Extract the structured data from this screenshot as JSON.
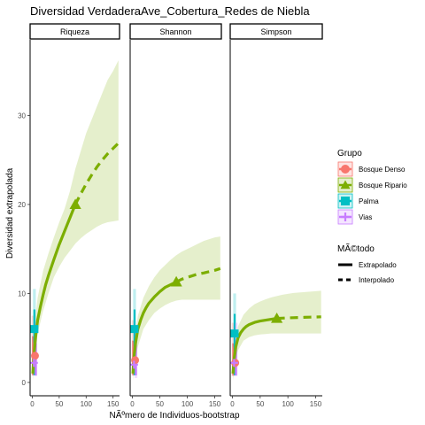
{
  "chart_data": {
    "type": "line",
    "title": "Diversidad VerdaderaAve_Cobertura_Redes de Niebla",
    "xlabel": "NÃºmero de Individuos-bootstrap",
    "ylabel": "Diversidad extrapolada",
    "xlim": [
      -4,
      162
    ],
    "ylim": [
      -1.5,
      38.5
    ],
    "x_ticks": [
      0,
      50,
      100,
      150
    ],
    "y_ticks": [
      0,
      10,
      20,
      30
    ],
    "grid": false,
    "legend_position": "right",
    "legend": {
      "color_title": "Grupo",
      "linetype_title": "MÃ©todo",
      "linetype_entries": [
        "Extrapolado",
        "Interpolado"
      ]
    },
    "colors": {
      "Bosque Denso": "#F8766D",
      "Bosque Ripario": "#7CAE00",
      "Palma": "#00BFC4",
      "Vias": "#C77CFF"
    },
    "groups": [
      {
        "name": "Bosque Denso",
        "color": "#F8766D",
        "shape": "circle"
      },
      {
        "name": "Bosque Ripario",
        "color": "#7CAE00",
        "shape": "triangle"
      },
      {
        "name": "Palma",
        "color": "#00BFC4",
        "shape": "square"
      },
      {
        "name": "Vias",
        "color": "#C77CFF",
        "shape": "cross"
      }
    ],
    "panels": [
      {
        "label": "Riqueza",
        "observed": {
          "x": 80,
          "y": 20
        },
        "curve": {
          "x": [
            1,
            3,
            6,
            10,
            15,
            20,
            25,
            30,
            40,
            50,
            60,
            70,
            80,
            90,
            100,
            110,
            120,
            130,
            140,
            150,
            160
          ],
          "y": [
            1,
            3,
            5,
            7,
            8.5,
            9.8,
            11,
            12,
            13.8,
            15.5,
            17,
            18.5,
            20,
            21.2,
            22.3,
            23.3,
            24.2,
            25,
            25.7,
            26.3,
            26.9
          ]
        },
        "ribbon": {
          "x": [
            1,
            5,
            10,
            20,
            30,
            40,
            50,
            60,
            70,
            80,
            90,
            100,
            110,
            120,
            130,
            140,
            150,
            160
          ],
          "lower": [
            0.2,
            3,
            5.5,
            8,
            10,
            11.8,
            13,
            14,
            14.8,
            15.6,
            16.2,
            16.7,
            17.1,
            17.5,
            17.8,
            18.0,
            18.1,
            18.2
          ],
          "upper": [
            3,
            7,
            9.5,
            12.5,
            14.5,
            16.3,
            18,
            19.5,
            21.5,
            24,
            26,
            28,
            29.5,
            31,
            32.5,
            34,
            35,
            36.2
          ]
        },
        "small_groups": {
          "Bosque Denso": {
            "x": 5,
            "y": 3
          },
          "Palma": {
            "x": 4,
            "y": 6
          },
          "Vias": {
            "x": 3,
            "y": 2.2
          }
        }
      },
      {
        "label": "Shannon",
        "observed": {
          "x": 80,
          "y": 11.3
        },
        "curve": {
          "x": [
            1,
            3,
            6,
            10,
            15,
            20,
            25,
            30,
            40,
            50,
            60,
            70,
            80,
            90,
            100,
            110,
            120,
            130,
            140,
            150,
            160
          ],
          "y": [
            1,
            2.8,
            4.5,
            6,
            7,
            7.8,
            8.4,
            8.9,
            9.6,
            10.2,
            10.7,
            11.0,
            11.3,
            11.6,
            11.8,
            12.0,
            12.2,
            12.3,
            12.45,
            12.6,
            12.8
          ]
        },
        "ribbon": {
          "x": [
            1,
            5,
            10,
            20,
            30,
            40,
            50,
            60,
            70,
            80,
            90,
            100,
            110,
            120,
            130,
            140,
            150,
            160
          ],
          "lower": [
            0.2,
            2.5,
            4,
            6,
            7,
            7.8,
            8.3,
            8.7,
            9.0,
            9.2,
            9.3,
            9.3,
            9.3,
            9.3,
            9.3,
            9.3,
            9.3,
            9.3
          ],
          "upper": [
            2.5,
            5.5,
            7.5,
            9.5,
            10.8,
            11.8,
            12.6,
            13.2,
            13.8,
            14.3,
            14.7,
            15.0,
            15.3,
            15.6,
            15.9,
            16.1,
            16.3,
            16.4
          ]
        },
        "small_groups": {
          "Bosque Denso": {
            "x": 5,
            "y": 2.5
          },
          "Palma": {
            "x": 4,
            "y": 6
          },
          "Vias": {
            "x": 3,
            "y": 2
          }
        }
      },
      {
        "label": "Simpson",
        "observed": {
          "x": 80,
          "y": 7.2
        },
        "curve": {
          "x": [
            1,
            3,
            6,
            10,
            15,
            20,
            25,
            30,
            40,
            50,
            60,
            70,
            80,
            90,
            100,
            110,
            120,
            130,
            140,
            150,
            160
          ],
          "y": [
            1,
            2.6,
            4,
            5,
            5.6,
            6,
            6.3,
            6.5,
            6.75,
            6.9,
            7.0,
            7.1,
            7.2,
            7.23,
            7.26,
            7.28,
            7.3,
            7.32,
            7.34,
            7.36,
            7.38
          ]
        },
        "ribbon": {
          "x": [
            1,
            5,
            10,
            20,
            30,
            40,
            50,
            60,
            70,
            80,
            90,
            100,
            110,
            120,
            130,
            140,
            150,
            160
          ],
          "lower": [
            0.2,
            2.3,
            3.6,
            4.7,
            5.1,
            5.3,
            5.4,
            5.45,
            5.5,
            5.5,
            5.5,
            5.5,
            5.5,
            5.5,
            5.5,
            5.5,
            5.5,
            5.5
          ],
          "upper": [
            2.2,
            4.8,
            6.3,
            7.6,
            8.3,
            8.8,
            9.1,
            9.35,
            9.55,
            9.7,
            9.85,
            9.95,
            10.05,
            10.1,
            10.15,
            10.2,
            10.25,
            10.3
          ]
        },
        "small_groups": {
          "Bosque Denso": {
            "x": 5,
            "y": 2.2
          },
          "Palma": {
            "x": 4,
            "y": 5.5
          },
          "Vias": {
            "x": 3,
            "y": 2.2
          }
        }
      }
    ]
  }
}
